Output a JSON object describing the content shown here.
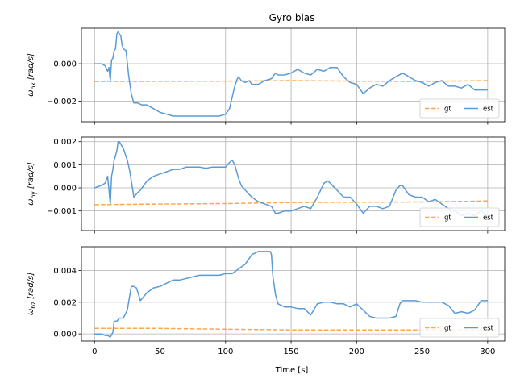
{
  "chart_data": {
    "type": "line",
    "title": "Gyro bias",
    "xlabel": "Time [s]",
    "xlim": [
      -10,
      313
    ],
    "xticks": [
      0,
      50,
      100,
      150,
      200,
      250,
      300
    ],
    "grid": true,
    "legend_placement": "lower-right",
    "colors": {
      "gt": "#ffa64d",
      "est": "#5b9bd5"
    },
    "subplots": [
      {
        "ylabel_main": "ω",
        "ylabel_sub": "bx",
        "ylabel_unit": " [rad/s]",
        "ylim": [
          -0.0031,
          0.0019
        ],
        "yticks": [
          -0.002,
          0.0
        ],
        "ytick_labels": [
          "−0.002",
          "0.000"
        ],
        "series": [
          {
            "name": "gt",
            "style": "dashed",
            "x": [
              0,
              100,
              150,
              200,
              250,
              300
            ],
            "y": [
              -0.00095,
              -0.00093,
              -0.0009,
              -0.00093,
              -0.00095,
              -0.0009
            ]
          },
          {
            "name": "est",
            "style": "solid",
            "x": [
              0,
              5,
              8,
              10,
              11,
              12,
              13,
              14,
              15,
              16,
              17,
              18,
              19,
              20,
              21,
              22,
              24,
              26,
              28,
              30,
              33,
              36,
              40,
              45,
              50,
              55,
              60,
              70,
              80,
              90,
              95,
              100,
              103,
              105,
              107,
              109,
              110,
              112,
              115,
              118,
              120,
              125,
              130,
              135,
              138,
              140,
              145,
              150,
              155,
              160,
              165,
              170,
              175,
              180,
              185,
              190,
              195,
              200,
              205,
              210,
              215,
              220,
              225,
              230,
              235,
              240,
              245,
              250,
              255,
              260,
              265,
              270,
              275,
              280,
              285,
              290,
              295,
              300
            ],
            "y": [
              0.0,
              0.0,
              -0.0001,
              -0.0004,
              -0.0002,
              -0.0009,
              0.0002,
              0.0003,
              0.0007,
              0.0008,
              0.0016,
              0.0017,
              0.0016,
              0.0015,
              0.001,
              0.0008,
              0.0007,
              -0.0006,
              -0.0016,
              -0.0021,
              -0.0021,
              -0.0022,
              -0.0022,
              -0.0024,
              -0.0026,
              -0.0027,
              -0.0028,
              -0.0028,
              -0.0028,
              -0.0028,
              -0.0028,
              -0.0027,
              -0.0024,
              -0.0018,
              -0.0012,
              -0.0008,
              -0.0007,
              -0.0009,
              -0.001,
              -0.0009,
              -0.0011,
              -0.0011,
              -0.0009,
              -0.0008,
              -0.0005,
              -0.0006,
              -0.0006,
              -0.0005,
              -0.0003,
              -0.0005,
              -0.0006,
              -0.0003,
              -0.0004,
              -0.0002,
              -0.0002,
              -0.0007,
              -0.001,
              -0.0011,
              -0.0016,
              -0.0013,
              -0.0011,
              -0.0012,
              -0.0009,
              -0.0007,
              -0.0005,
              -0.0007,
              -0.0009,
              -0.001,
              -0.0012,
              -0.001,
              -0.0009,
              -0.0012,
              -0.0012,
              -0.0013,
              -0.0011,
              -0.0014,
              -0.0014,
              -0.0014
            ]
          }
        ]
      },
      {
        "ylabel_main": "ω",
        "ylabel_sub": "by",
        "ylabel_unit": " [rad/s]",
        "ylim": [
          -0.00185,
          0.0022
        ],
        "yticks": [
          -0.001,
          0.0,
          0.001,
          0.002
        ],
        "ytick_labels": [
          "−0.001",
          "0.000",
          "0.001",
          "0.002"
        ],
        "series": [
          {
            "name": "gt",
            "style": "dashed",
            "x": [
              0,
              50,
              100,
              150,
              200,
              250,
              300
            ],
            "y": [
              -0.00073,
              -0.0007,
              -0.00068,
              -0.00063,
              -0.00062,
              -0.00061,
              -0.00057
            ]
          },
          {
            "name": "est",
            "style": "solid",
            "x": [
              0,
              5,
              8,
              10,
              12,
              13,
              14,
              15,
              16,
              17,
              18,
              19,
              20,
              22,
              25,
              27,
              30,
              33,
              35,
              40,
              45,
              50,
              55,
              60,
              65,
              70,
              75,
              80,
              85,
              90,
              95,
              100,
              103,
              105,
              107,
              110,
              112,
              115,
              120,
              125,
              130,
              135,
              138,
              140,
              145,
              150,
              155,
              160,
              165,
              170,
              175,
              178,
              180,
              185,
              190,
              195,
              200,
              205,
              210,
              215,
              220,
              225,
              230,
              233,
              235,
              240,
              245,
              250,
              255,
              260,
              265,
              270,
              275,
              280,
              285,
              290,
              295,
              300
            ],
            "y": [
              0.0,
              0.0001,
              0.0002,
              0.0005,
              -0.0007,
              0.0005,
              0.0008,
              0.0012,
              0.0014,
              0.0016,
              0.002,
              0.002,
              0.0019,
              0.0017,
              0.0012,
              0.0007,
              -0.0004,
              -0.0002,
              -0.0001,
              0.0003,
              0.0005,
              0.0006,
              0.0007,
              0.0008,
              0.0008,
              0.0009,
              0.0009,
              0.0009,
              0.00085,
              0.0009,
              0.0009,
              0.0009,
              0.0011,
              0.0012,
              0.001,
              0.0004,
              0.0001,
              -0.0001,
              -0.0004,
              -0.0006,
              -0.0007,
              -0.0008,
              -0.0011,
              -0.0011,
              -0.001,
              -0.001,
              -0.0009,
              -0.0008,
              -0.0009,
              -0.0004,
              0.0002,
              0.0003,
              0.0002,
              -0.0001,
              -0.0004,
              -0.0004,
              -0.0007,
              -0.0011,
              -0.0008,
              -0.0008,
              -0.0009,
              -0.0008,
              -0.0001,
              0.0001,
              0.0001,
              -0.0003,
              -0.0004,
              -0.0004,
              -0.0006,
              -0.0005,
              -0.0007,
              -0.0009,
              -0.001,
              -0.0012,
              -0.0011,
              -0.0012,
              -0.001,
              -0.0012
            ]
          }
        ]
      },
      {
        "ylabel_main": "ω",
        "ylabel_sub": "bz",
        "ylabel_unit": " [rad/s]",
        "ylim": [
          -0.00045,
          0.0055
        ],
        "yticks": [
          0.0,
          0.002,
          0.004
        ],
        "ytick_labels": [
          "0.000",
          "0.002",
          "0.004"
        ],
        "series": [
          {
            "name": "gt",
            "style": "dashed",
            "x": [
              0,
              50,
              100,
              150,
              200,
              250,
              300
            ],
            "y": [
              0.00035,
              0.00035,
              0.0003,
              0.00025,
              0.00025,
              0.00025,
              0.00025
            ]
          },
          {
            "name": "est",
            "style": "solid",
            "x": [
              0,
              5,
              8,
              10,
              12,
              14,
              15,
              16,
              17,
              18,
              19,
              20,
              22,
              25,
              28,
              30,
              32,
              35,
              40,
              45,
              50,
              55,
              60,
              65,
              70,
              75,
              80,
              85,
              90,
              95,
              100,
              105,
              110,
              115,
              120,
              125,
              130,
              134,
              135,
              136,
              138,
              140,
              145,
              150,
              155,
              160,
              165,
              170,
              175,
              180,
              185,
              190,
              195,
              200,
              205,
              210,
              215,
              220,
              225,
              230,
              233,
              235,
              240,
              245,
              250,
              255,
              260,
              265,
              270,
              275,
              280,
              285,
              290,
              295,
              300
            ],
            "y": [
              0.0,
              0.0,
              -0.0001,
              -0.0001,
              -0.0002,
              0.0001,
              0.0008,
              0.0008,
              0.0008,
              0.0009,
              0.001,
              0.001,
              0.001,
              0.0015,
              0.003,
              0.003,
              0.0029,
              0.0021,
              0.0026,
              0.0029,
              0.003,
              0.0032,
              0.0034,
              0.0034,
              0.0035,
              0.0036,
              0.0037,
              0.0037,
              0.0037,
              0.0037,
              0.0038,
              0.0038,
              0.0041,
              0.0044,
              0.005,
              0.0052,
              0.0052,
              0.0052,
              0.005,
              0.0037,
              0.0025,
              0.0019,
              0.0017,
              0.0017,
              0.0016,
              0.0016,
              0.0012,
              0.0019,
              0.002,
              0.002,
              0.0019,
              0.0019,
              0.0017,
              0.0019,
              0.0015,
              0.0011,
              0.001,
              0.001,
              0.001,
              0.0011,
              0.0019,
              0.0021,
              0.0021,
              0.0021,
              0.002,
              0.002,
              0.002,
              0.002,
              0.0018,
              0.0013,
              0.0014,
              0.0013,
              0.0015,
              0.0021,
              0.0021
            ]
          }
        ]
      }
    ]
  }
}
